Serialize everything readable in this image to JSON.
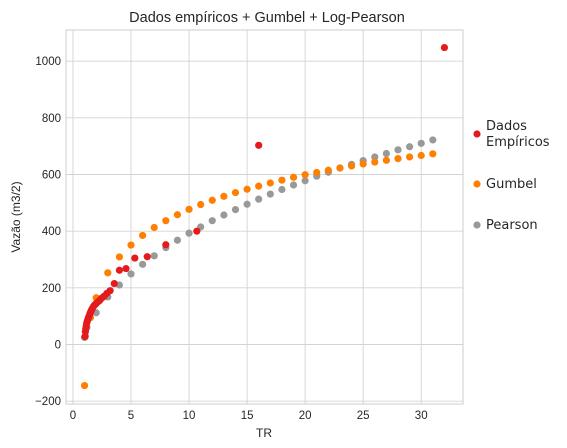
{
  "chart_data": {
    "type": "scatter",
    "title": "Dados empíricos + Gumbel + Log-Pearson",
    "xlabel": "TR",
    "ylabel": "Vazão (m3/2)",
    "xlim": [
      -0.6,
      33.6
    ],
    "ylim": [
      -210,
      1110
    ],
    "xticks": [
      0,
      5,
      10,
      15,
      20,
      25,
      30
    ],
    "yticks": [
      -200,
      0,
      200,
      400,
      600,
      800,
      1000
    ],
    "xtick_labels": [
      "0",
      "5",
      "10",
      "15",
      "20",
      "25",
      "30"
    ],
    "ytick_labels": [
      "−200",
      "0",
      "200",
      "400",
      "600",
      "800",
      "1000"
    ],
    "grid": true,
    "legend_position": "right",
    "series": [
      {
        "name": "Pearson",
        "color": "#999999",
        "x": [
          1.0,
          1.07,
          1.2,
          1.5,
          2.0,
          3.0,
          4.0,
          5.0,
          6.0,
          7.0,
          8.0,
          9.0,
          10.0,
          11.0,
          12.0,
          13.0,
          14.0,
          15.0,
          16.0,
          17.0,
          18.0,
          19.0,
          20.0,
          21.0,
          22.0,
          23.0,
          24.0,
          25.0,
          26.0,
          27.0,
          28.0,
          29.0,
          30.0,
          31.0
        ],
        "y": [
          25,
          30,
          60,
          95,
          112,
          168,
          210,
          249,
          283,
          313,
          342,
          368,
          393,
          415,
          437,
          457,
          476,
          495,
          513,
          531,
          547,
          563,
          578,
          594,
          608,
          623,
          636,
          649,
          662,
          674,
          687,
          698,
          710,
          722
        ]
      },
      {
        "name": "Gumbel",
        "color": "#ff7f00",
        "x": [
          1.0,
          1.5,
          2.0,
          3.0,
          4.0,
          5.0,
          6.0,
          7.0,
          8.0,
          9.0,
          10.0,
          11.0,
          12.0,
          13.0,
          14.0,
          15.0,
          16.0,
          17.0,
          18.0,
          19.0,
          20.0,
          21.0,
          22.0,
          23.0,
          24.0,
          25.0,
          26.0,
          27.0,
          28.0,
          29.0,
          30.0,
          31.0
        ],
        "y": [
          -145,
          95,
          165,
          253,
          309,
          351,
          385,
          413,
          437,
          458,
          477,
          494,
          509,
          523,
          536,
          548,
          559,
          570,
          580,
          590,
          599,
          607,
          615,
          623,
          630,
          637,
          644,
          650,
          656,
          662,
          667,
          673
        ]
      },
      {
        "name": "Dados\nEmpíricos",
        "color": "#e41a1c",
        "x": [
          1.03,
          1.07,
          1.1,
          1.14,
          1.18,
          1.23,
          1.28,
          1.33,
          1.39,
          1.45,
          1.52,
          1.6,
          1.68,
          1.78,
          1.88,
          2.0,
          2.13,
          2.29,
          2.46,
          2.67,
          2.91,
          3.2,
          3.56,
          4.0,
          4.57,
          5.33,
          6.4,
          8.0,
          10.67,
          16.0,
          32.0
        ],
        "y": [
          28,
          45,
          55,
          65,
          75,
          82,
          88,
          95,
          100,
          108,
          115,
          122,
          128,
          135,
          140,
          145,
          150,
          155,
          163,
          170,
          180,
          190,
          215,
          262,
          268,
          305,
          310,
          352,
          400,
          703,
          1048
        ]
      }
    ]
  }
}
